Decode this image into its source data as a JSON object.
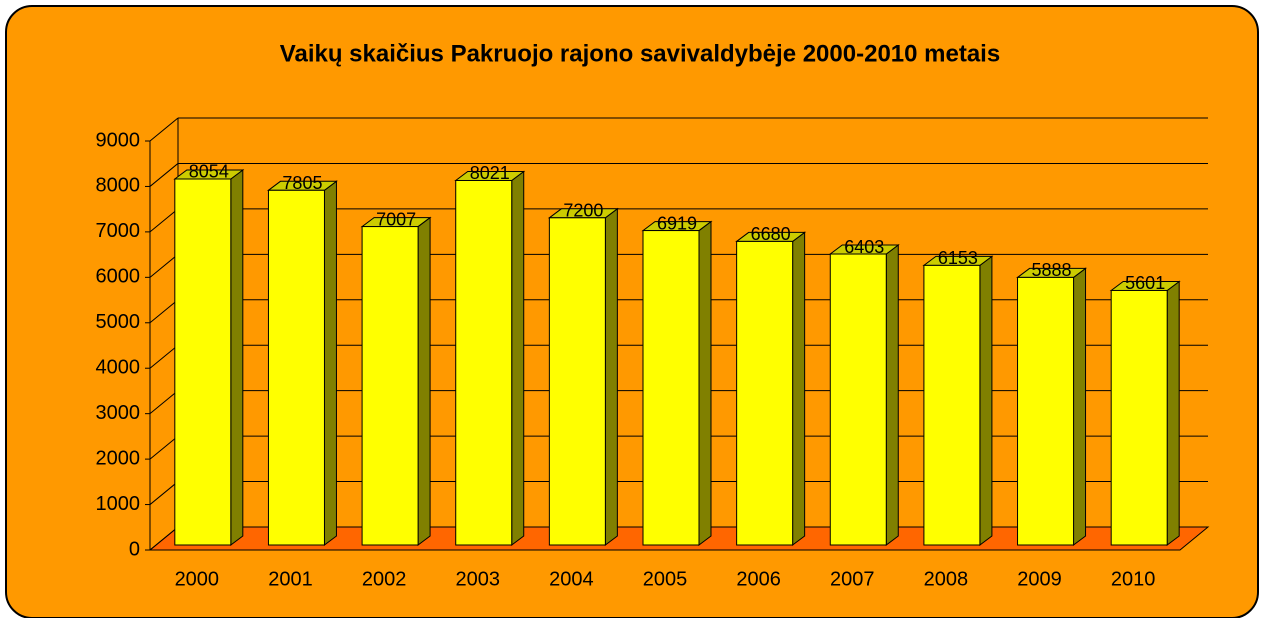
{
  "chart_data": {
    "type": "bar3d",
    "title": "Vaikų skaičius Pakruojo rajono savivaldybėje 2000-2010 metais",
    "categories": [
      "2000",
      "2001",
      "2002",
      "2003",
      "2004",
      "2005",
      "2006",
      "2007",
      "2008",
      "2009",
      "2010"
    ],
    "values": [
      8054,
      7805,
      7007,
      8021,
      7200,
      6919,
      6680,
      6403,
      6153,
      5888,
      5601
    ],
    "color": "#ffff00",
    "ylim": [
      0,
      9000
    ],
    "yticks": [
      0,
      1000,
      2000,
      3000,
      4000,
      5000,
      6000,
      7000,
      8000,
      9000
    ],
    "grid": true
  }
}
